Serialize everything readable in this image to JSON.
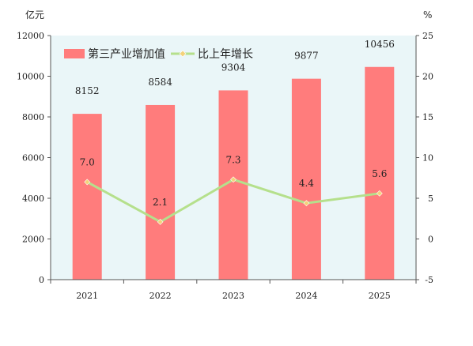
{
  "chart_data": {
    "type": "bar",
    "categories": [
      "2021",
      "2022",
      "2023",
      "2024",
      "2025"
    ],
    "series": [
      {
        "name": "第三产业增加值",
        "type": "bar",
        "axis": "left",
        "values": [
          8152,
          8584,
          9304,
          9877,
          10456
        ],
        "labels": [
          "8152",
          "8584",
          "9304",
          "9877",
          "10456"
        ],
        "color": "#ff7c7c"
      },
      {
        "name": "比上年增长",
        "type": "line",
        "axis": "right",
        "values": [
          7.0,
          2.1,
          7.3,
          4.4,
          5.6
        ],
        "labels": [
          "7.0",
          "2.1",
          "7.3",
          "4.4",
          "5.6"
        ],
        "color": "#b5e08c",
        "marker_color": "#f4d27a"
      }
    ],
    "y_left": {
      "unit": "亿元",
      "ylim": [
        0,
        12000
      ],
      "ticks": [
        "0",
        "2000",
        "4000",
        "6000",
        "8000",
        "10000",
        "12000"
      ]
    },
    "y_right": {
      "unit": "%",
      "ylim": [
        -5,
        25
      ],
      "ticks": [
        "-5",
        "0",
        "5",
        "10",
        "15",
        "20",
        "25"
      ]
    },
    "plot_background": "#eaf6f8",
    "grid": false,
    "legend_position": "top-left"
  }
}
